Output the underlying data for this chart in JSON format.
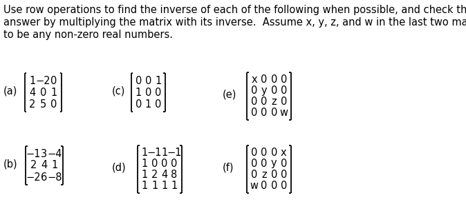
{
  "title_lines": [
    "Use row operations to find the inverse of each of the following when possible, and check the",
    "answer by multiplying the matrix with its inverse.  Assume x, y, z, and w in the last two matrices",
    "to be any non-zero real numbers."
  ],
  "bg_color": "#ffffff",
  "text_color": "#000000",
  "font_size_body": 10.5,
  "font_size_matrix": 10.5,
  "matrices": {
    "a": {
      "label": "(a)",
      "rows": [
        [
          "1",
          "−2",
          "0"
        ],
        [
          "4",
          "0",
          "1"
        ],
        [
          "2",
          "5",
          "0"
        ]
      ]
    },
    "b": {
      "label": "(b)",
      "rows": [
        [
          "−1",
          "3",
          "−4"
        ],
        [
          "2",
          "4",
          "1"
        ],
        [
          "−2",
          "6",
          "−8"
        ]
      ]
    },
    "c": {
      "label": "(c)",
      "rows": [
        [
          "0",
          "0",
          "1"
        ],
        [
          "1",
          "0",
          "0"
        ],
        [
          "0",
          "1",
          "0"
        ]
      ]
    },
    "d": {
      "label": "(d)",
      "rows": [
        [
          "1",
          "−1",
          "1",
          "−1"
        ],
        [
          "1",
          "0",
          "0",
          "0"
        ],
        [
          "1",
          "2",
          "4",
          "8"
        ],
        [
          "1",
          "1",
          "1",
          "1"
        ]
      ]
    },
    "e": {
      "label": "(e)",
      "rows": [
        [
          "x",
          "0",
          "0",
          "0"
        ],
        [
          "0",
          "y",
          "0",
          "0"
        ],
        [
          "0",
          "0",
          "z",
          "0"
        ],
        [
          "0",
          "0",
          "0",
          "w"
        ]
      ]
    },
    "f": {
      "label": "(f)",
      "rows": [
        [
          "0",
          "0",
          "0",
          "x"
        ],
        [
          "0",
          "0",
          "y",
          "0"
        ],
        [
          "0",
          "z",
          "0",
          "0"
        ],
        [
          "w",
          "0",
          "0",
          "0"
        ]
      ]
    }
  }
}
